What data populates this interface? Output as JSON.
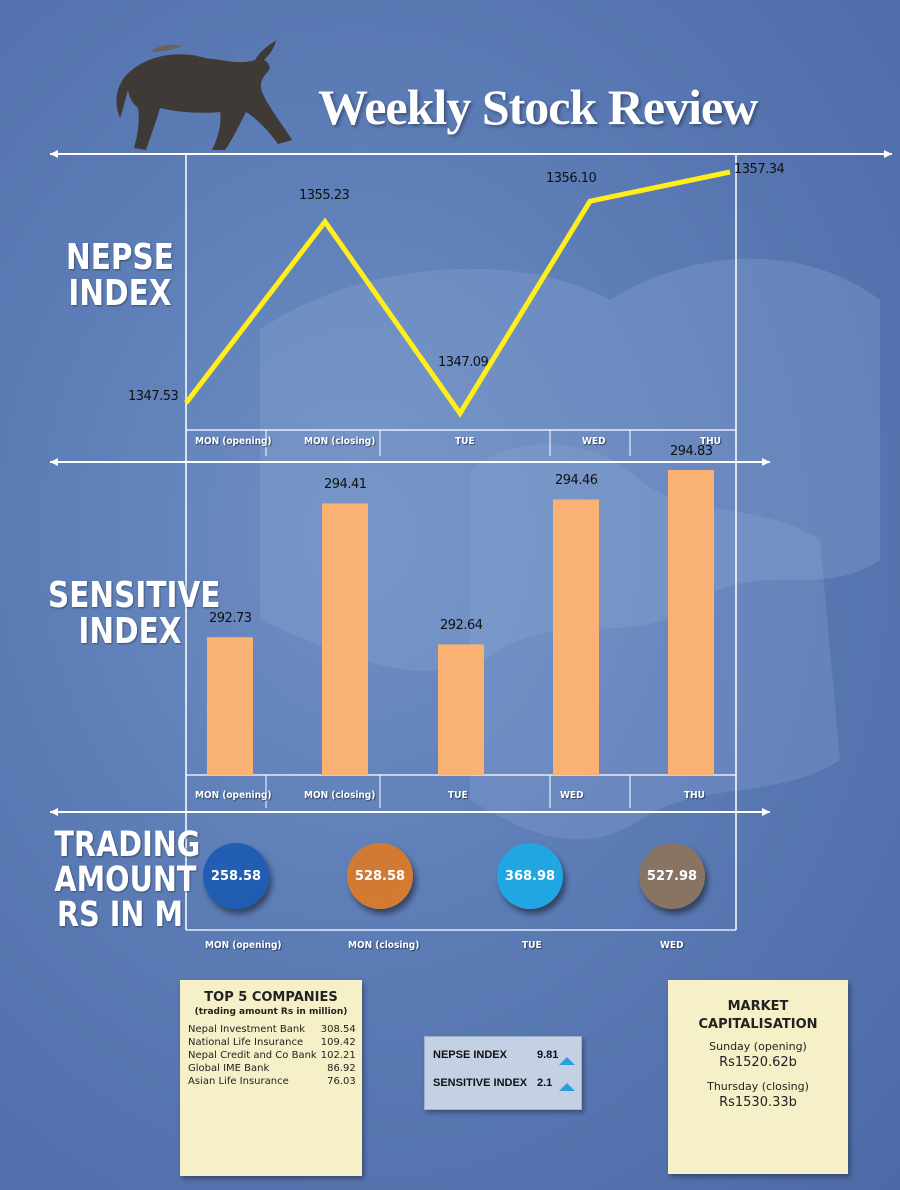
{
  "header": {
    "title": "Weekly Stock Review"
  },
  "colors": {
    "line": "#ffee1a",
    "bar": "#f9b274",
    "bubble_blue": "#1e5cb3",
    "bubble_orange": "#d77a2d",
    "bubble_cyan": "#1fa8e4",
    "bubble_brown": "#8a7460",
    "note_bg": "#f5f0c8"
  },
  "sections": {
    "nepse": "NEPSE\nINDEX",
    "sensitive": "SENSITIVE\nINDEX",
    "trading": "TRADING\nAMOUNT\nRS IN M"
  },
  "chart_data": [
    {
      "type": "line",
      "categories": [
        "MON (opening)",
        "MON (closing)",
        "TUE",
        "WED",
        "THU"
      ],
      "values": [
        1347.53,
        1355.23,
        1347.09,
        1356.1,
        1357.34
      ],
      "value_labels": [
        "1347.53",
        "1355.23",
        "1347.09",
        "1356.10",
        "1357.34"
      ],
      "ylim": [
        1346.5,
        1358.0
      ]
    },
    {
      "type": "bar",
      "categories": [
        "MON (opening)",
        "MON (closing)",
        "TUE",
        "WED",
        "THU"
      ],
      "values": [
        292.73,
        294.41,
        292.64,
        294.46,
        294.83
      ],
      "value_labels": [
        "292.73",
        "294.41",
        "292.64",
        "294.46",
        "294.83"
      ],
      "ylim": [
        291.0,
        295.0
      ]
    },
    {
      "type": "bubble",
      "categories": [
        "MON (opening)",
        "MON (closing)",
        "TUE",
        "WED"
      ],
      "values": [
        258.58,
        528.58,
        368.98,
        527.98
      ],
      "value_labels": [
        "258.58",
        "528.58",
        "368.98",
        "527.98"
      ]
    }
  ],
  "top5": {
    "title": "TOP 5 COMPANIES",
    "subtitle": "(trading amount Rs in million)",
    "rows": [
      {
        "name": "Nepal Investment Bank",
        "value": "308.54"
      },
      {
        "name": "National Life Insurance",
        "value": "109.42"
      },
      {
        "name": "Nepal Credit and Co Bank",
        "value": "102.21"
      },
      {
        "name": "Global IME Bank",
        "value": "86.92"
      },
      {
        "name": "Asian Life Insurance",
        "value": "76.03"
      }
    ]
  },
  "changes": {
    "rows": [
      {
        "label": "NEPSE INDEX",
        "value": "9.81",
        "icon": "up-triangle-icon"
      },
      {
        "label": "SENSITIVE INDEX",
        "value": "2.1",
        "icon": "up-triangle-icon"
      }
    ]
  },
  "market_cap": {
    "title": "MARKET\nCAPITALISATION",
    "opening_label": "Sunday (opening)",
    "opening_value": "Rs1520.62b",
    "closing_label": "Thursday (closing)",
    "closing_value": "Rs1530.33b"
  }
}
